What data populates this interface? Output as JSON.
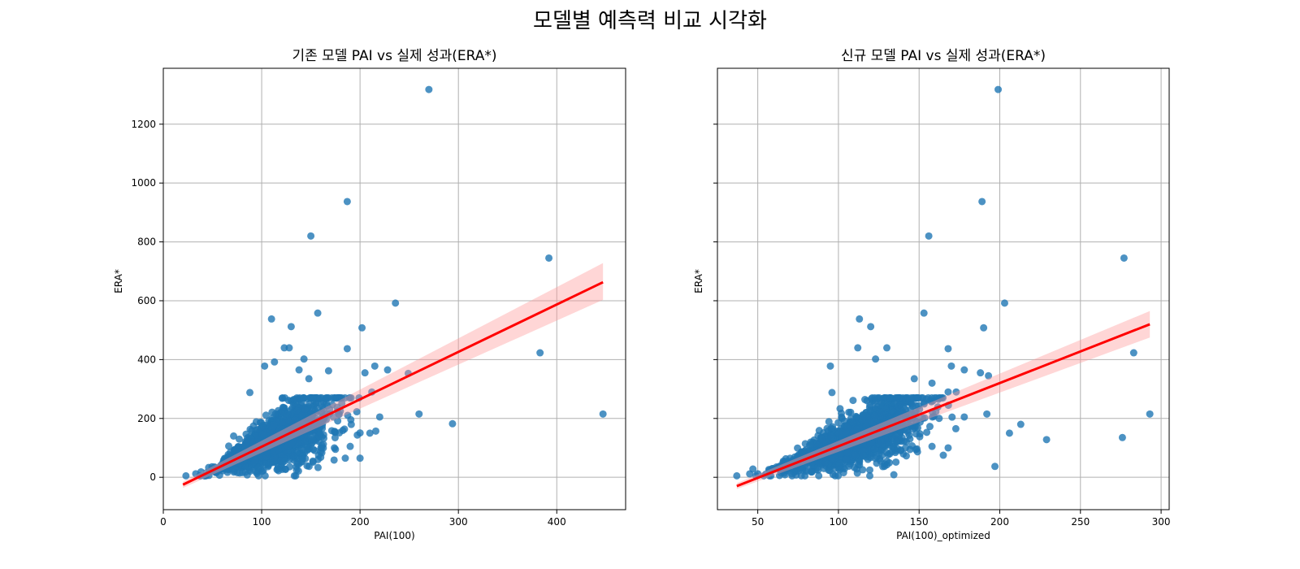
{
  "figure": {
    "title": "모델별 예측력 비교 시각화"
  },
  "colors": {
    "points": "#1f77b4",
    "regression": "#ff0000",
    "ci_band": "#ff9999",
    "grid": "#b0b0b0"
  },
  "chart_data": [
    {
      "type": "scatter",
      "title": "기존 모델 PAI vs 실제 성과(ERA*)",
      "xlabel": "PAI(100)",
      "ylabel": "ERA*",
      "xlim": [
        0,
        470
      ],
      "ylim": [
        -110,
        1390
      ],
      "xticks": [
        0,
        100,
        200,
        300,
        400
      ],
      "yticks": [
        0,
        200,
        400,
        600,
        800,
        1000,
        1200
      ],
      "grid": true,
      "regression": {
        "x": [
          20,
          447
        ],
        "y": [
          -25,
          663
        ],
        "ci_upper": [
          -15,
          728
        ],
        "ci_lower": [
          -36,
          603
        ]
      },
      "outliers": [
        [
          270,
          1318
        ],
        [
          187,
          937
        ],
        [
          150,
          820
        ],
        [
          392,
          745
        ],
        [
          383,
          423
        ],
        [
          447,
          215
        ],
        [
          294,
          182
        ],
        [
          260,
          215
        ],
        [
          249,
          353
        ],
        [
          236,
          592
        ],
        [
          202,
          508
        ],
        [
          187,
          437
        ],
        [
          157,
          558
        ],
        [
          130,
          512
        ],
        [
          110,
          538
        ],
        [
          215,
          378
        ],
        [
          228,
          365
        ],
        [
          220,
          205
        ],
        [
          205,
          355
        ],
        [
          212,
          290
        ],
        [
          143,
          402
        ],
        [
          123,
          440
        ],
        [
          128,
          440
        ],
        [
          168,
          362
        ],
        [
          148,
          335
        ],
        [
          88,
          288
        ],
        [
          103,
          378
        ],
        [
          113,
          392
        ],
        [
          138,
          365
        ],
        [
          23,
          5
        ],
        [
          33,
          12
        ],
        [
          200,
          65
        ],
        [
          210,
          150
        ],
        [
          216,
          157
        ],
        [
          190,
          105
        ],
        [
          185,
          65
        ],
        [
          175,
          95
        ],
        [
          160,
          68
        ],
        [
          152,
          55
        ]
      ],
      "cluster": {
        "seed": 11,
        "count": 1400,
        "x_range": [
          30,
          200
        ],
        "y_range": [
          5,
          270
        ]
      }
    },
    {
      "type": "scatter",
      "title": "신규 모델 PAI vs 실제 성과(ERA*)",
      "xlabel": "PAI(100)_optimized",
      "ylabel": "ERA*",
      "xlim": [
        25,
        305
      ],
      "ylim": [
        -110,
        1390
      ],
      "xticks": [
        50,
        100,
        150,
        200,
        250,
        300
      ],
      "yticks": [
        0,
        200,
        400,
        600,
        800,
        1000,
        1200
      ],
      "grid": true,
      "regression": {
        "x": [
          37,
          293
        ],
        "y": [
          -30,
          520
        ],
        "ci_upper": [
          -20,
          565
        ],
        "ci_lower": [
          -40,
          475
        ]
      },
      "outliers": [
        [
          199,
          1318
        ],
        [
          189,
          937
        ],
        [
          156,
          820
        ],
        [
          277,
          745
        ],
        [
          190,
          508
        ],
        [
          203,
          592
        ],
        [
          153,
          558
        ],
        [
          283,
          423
        ],
        [
          293,
          215
        ],
        [
          276,
          135
        ],
        [
          229,
          128
        ],
        [
          213,
          180
        ],
        [
          206,
          150
        ],
        [
          197,
          37
        ],
        [
          192,
          215
        ],
        [
          188,
          355
        ],
        [
          193,
          345
        ],
        [
          178,
          365
        ],
        [
          168,
          437
        ],
        [
          113,
          538
        ],
        [
          120,
          512
        ],
        [
          112,
          440
        ],
        [
          123,
          402
        ],
        [
          130,
          440
        ],
        [
          147,
          335
        ],
        [
          158,
          320
        ],
        [
          173,
          290
        ],
        [
          168,
          290
        ],
        [
          170,
          378
        ],
        [
          178,
          205
        ],
        [
          162,
          265
        ],
        [
          95,
          378
        ],
        [
          96,
          288
        ],
        [
          37,
          5
        ],
        [
          47,
          28
        ],
        [
          50,
          12
        ],
        [
          168,
          100
        ],
        [
          158,
          105
        ],
        [
          165,
          75
        ]
      ],
      "cluster": {
        "seed": 23,
        "count": 1400,
        "x_range": [
          45,
          175
        ],
        "y_range": [
          5,
          270
        ]
      }
    }
  ]
}
